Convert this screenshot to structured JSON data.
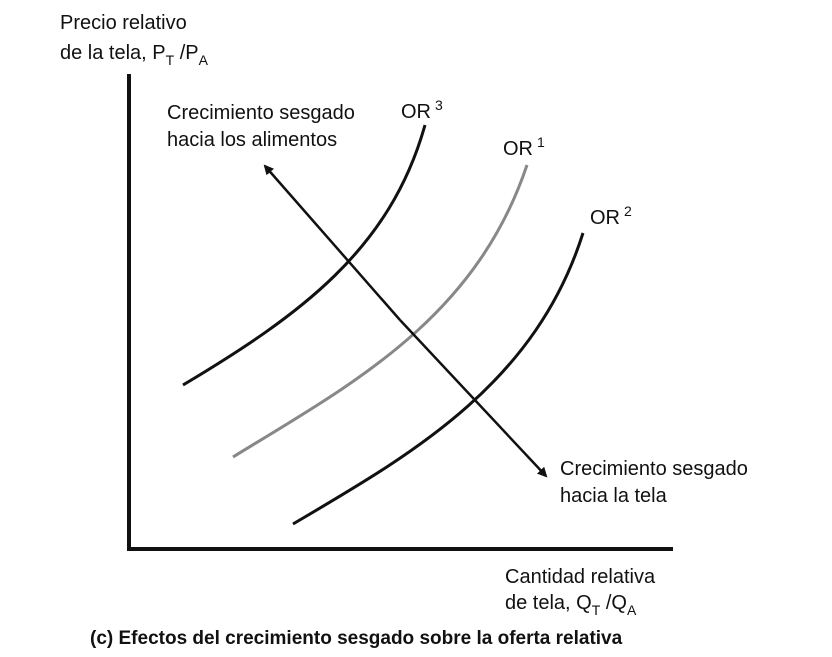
{
  "y_axis_label": {
    "line1": "Precio relativo",
    "line2": "de la tela, P",
    "sub1": "T",
    "mid": " /P",
    "sub2": "A"
  },
  "x_axis_label": {
    "line1": "Cantidad relativa",
    "line2": "de tela, Q",
    "sub1": "T",
    "mid": " /Q",
    "sub2": "A"
  },
  "curves": [
    {
      "name": "OR",
      "sup": "3",
      "color": "#111111"
    },
    {
      "name": "OR",
      "sup": "1",
      "color": "#888888"
    },
    {
      "name": "OR",
      "sup": "2",
      "color": "#111111"
    }
  ],
  "arrow_labels": {
    "food_line1": "Crecimiento sesgado",
    "food_line2": "hacia los alimentos",
    "cloth_line1": "Crecimiento sesgado",
    "cloth_line2": "hacia la tela"
  },
  "caption": "(c) Efectos del crecimiento sesgado sobre la oferta relativa"
}
